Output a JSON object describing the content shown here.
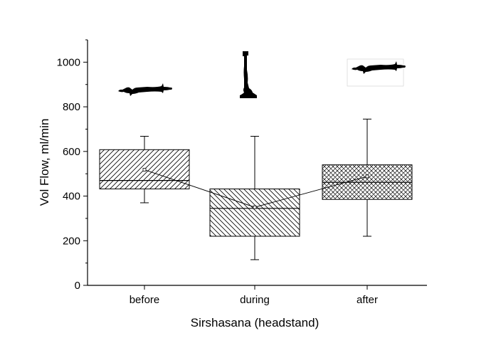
{
  "chart_data": {
    "type": "box",
    "title": "",
    "xlabel": "Sirshasana (headstand)",
    "ylabel": "Vol Flow, ml/min",
    "ylim": [
      0,
      1100
    ],
    "yticks": [
      0,
      200,
      400,
      600,
      800,
      1000
    ],
    "categories": [
      "before",
      "during",
      "after"
    ],
    "boxes": [
      {
        "category": "before",
        "whisker_low": 370,
        "q1": 432,
        "median": 470,
        "q3": 608,
        "whisker_high": 668,
        "mean": 518,
        "pattern": "forward-diagonal-hatch"
      },
      {
        "category": "during",
        "whisker_low": 115,
        "q1": 220,
        "median": 345,
        "q3": 432,
        "whisker_high": 668,
        "mean": 350,
        "pattern": "backward-diagonal-hatch"
      },
      {
        "category": "after",
        "whisker_low": 220,
        "q1": 385,
        "median": 462,
        "q3": 540,
        "whisker_high": 745,
        "mean": 488,
        "pattern": "cross-hatch"
      }
    ],
    "mean_line": true,
    "grid": false,
    "pictograms": [
      {
        "category": "before",
        "icon": "lying-person-silhouette-icon"
      },
      {
        "category": "during",
        "icon": "headstand-person-silhouette-icon"
      },
      {
        "category": "after",
        "icon": "lying-person-silhouette-icon"
      }
    ]
  }
}
